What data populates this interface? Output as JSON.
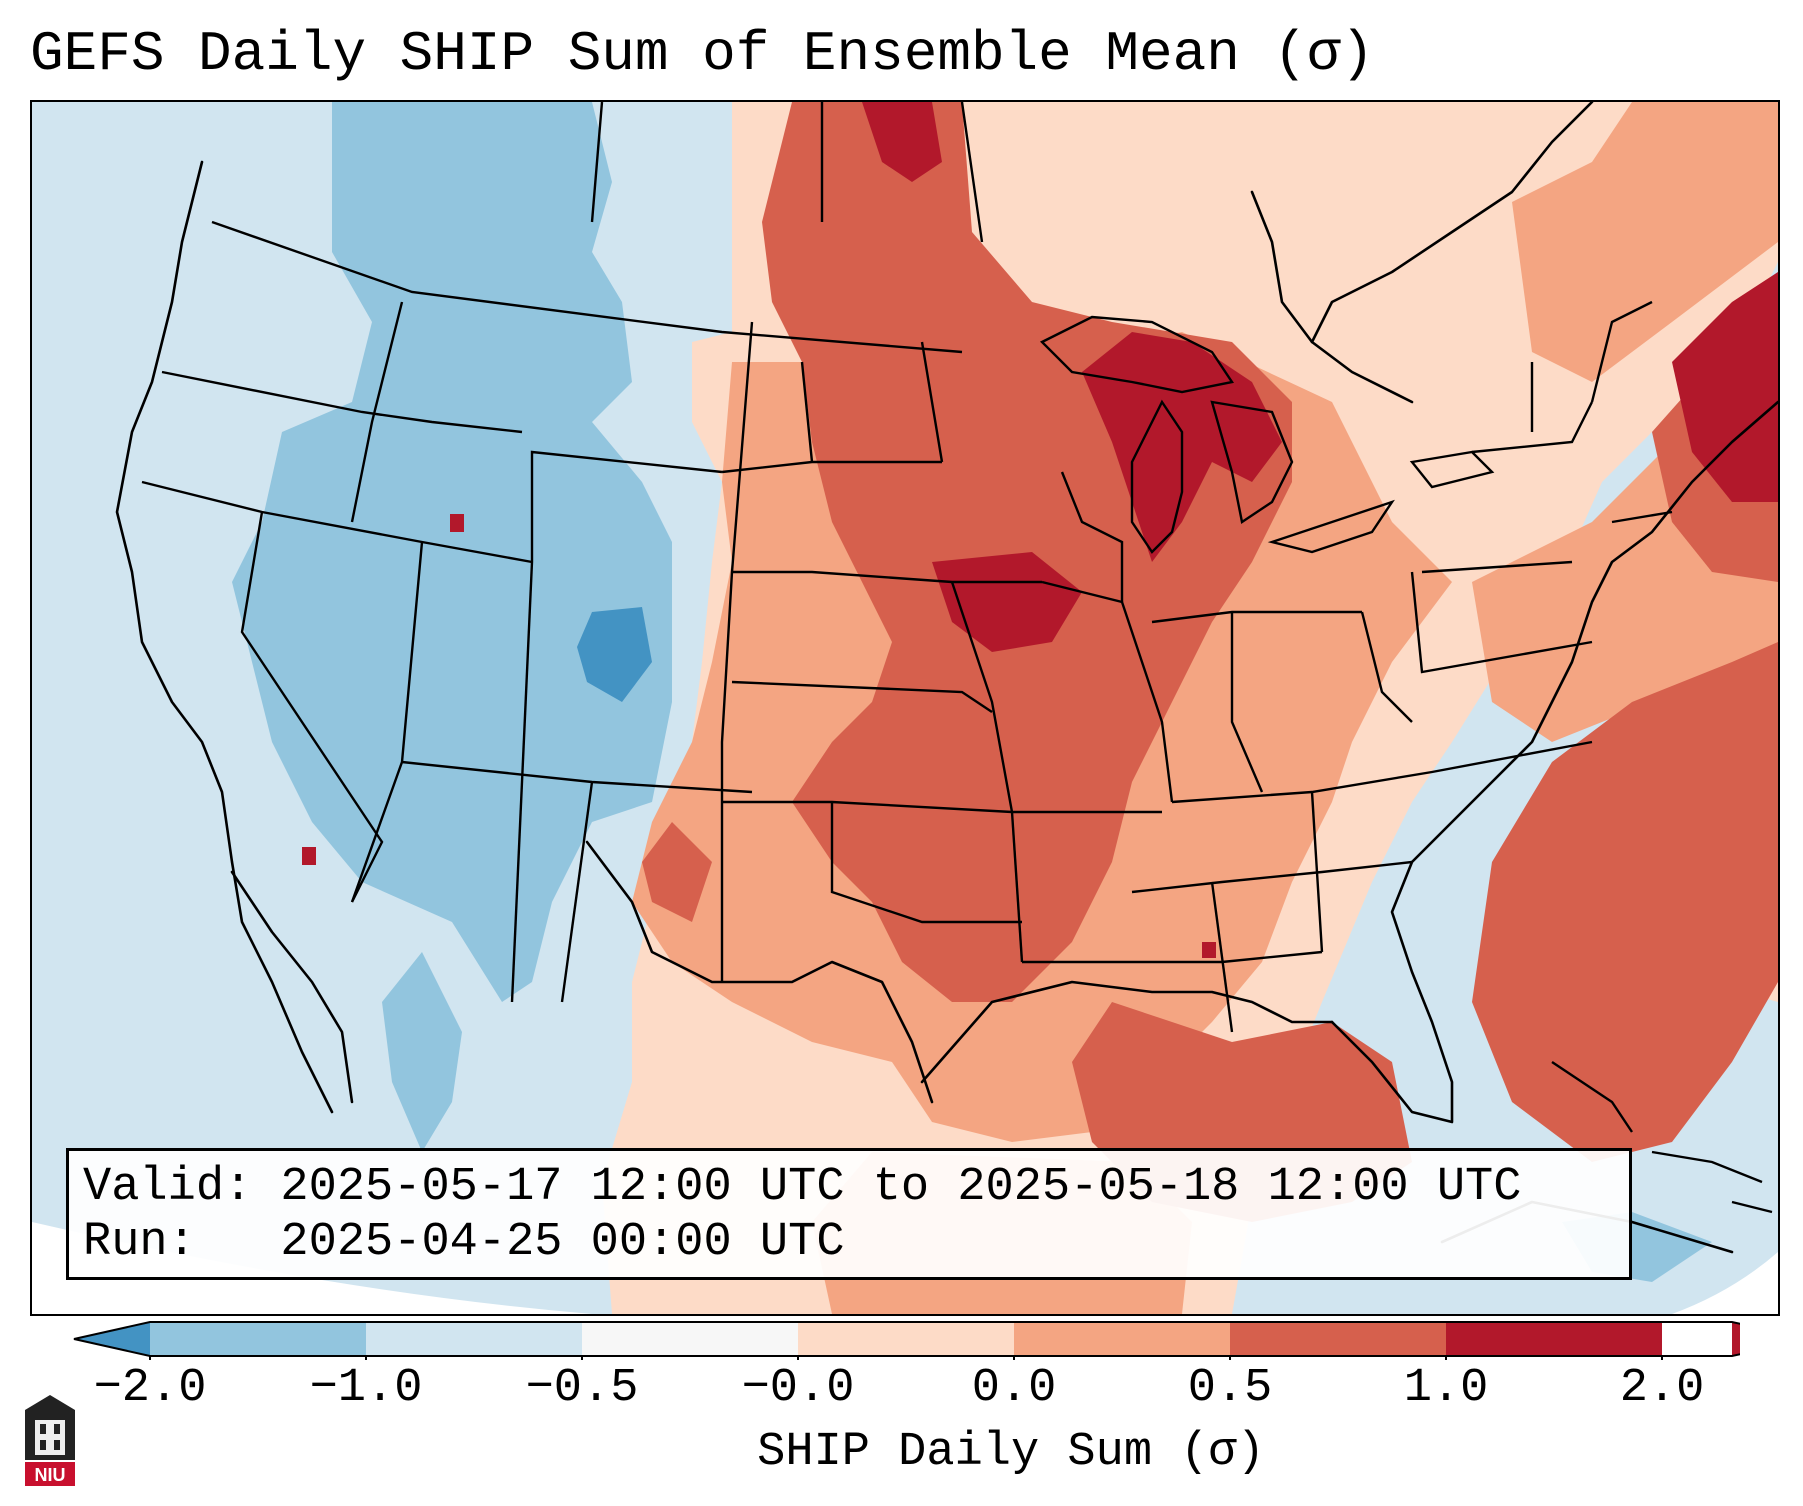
{
  "title": "GEFS Daily SHIP Sum of Ensemble Mean (σ)",
  "info": {
    "valid": "Valid: 2025-05-17 12:00 UTC to 2025-05-18 12:00 UTC",
    "run": "Run:   2025-04-25 00:00 UTC"
  },
  "colorbar": {
    "label": "SHIP Daily Sum (σ)",
    "ticks": [
      "−2.0",
      "−1.0",
      "−0.5",
      "−0.0",
      "0.0",
      "0.5",
      "1.0",
      "2.0"
    ],
    "bin_colors": [
      "#4393c3",
      "#92c5de",
      "#d1e5f0",
      "#f7f7f7",
      "#fddbc7",
      "#f4a582",
      "#d6604d",
      "#b2182b"
    ],
    "extend": "both"
  },
  "logo": {
    "text": "NIU"
  }
}
